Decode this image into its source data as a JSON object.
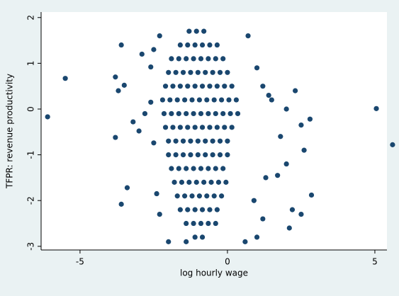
{
  "chart_data": {
    "type": "scatter",
    "x_label": "log hourly wage",
    "y_label": "TFPR: revenue productivity",
    "xlim": [
      -6.32,
      5.41
    ],
    "ylim": [
      -3.08,
      2.12
    ],
    "xticks": [
      -5,
      0,
      5
    ],
    "yticks": [
      -3,
      -2,
      -1,
      0,
      1,
      2
    ],
    "grid": false,
    "series": [
      {
        "color": "#1a476f",
        "x": [
          -1.3,
          -1.05,
          -0.8,
          -1.6,
          -1.35,
          -1.1,
          -0.85,
          -0.6,
          -0.35,
          -1.9,
          -1.65,
          -1.4,
          -1.15,
          -0.9,
          -0.65,
          -0.4,
          -0.15,
          -2.0,
          -1.75,
          -1.5,
          -1.25,
          -1.0,
          -0.75,
          -0.5,
          -0.25,
          0.0,
          -2.1,
          -1.85,
          -1.6,
          -1.35,
          -1.1,
          -0.85,
          -0.6,
          -0.35,
          -0.1,
          0.15,
          -2.2,
          -1.95,
          -1.7,
          -1.45,
          -1.2,
          -0.95,
          -0.7,
          -0.45,
          -0.2,
          0.05,
          0.3,
          -2.15,
          -1.9,
          -1.65,
          -1.4,
          -1.15,
          -0.9,
          -0.65,
          -0.4,
          -0.15,
          0.1,
          0.35,
          -2.1,
          -1.85,
          -1.6,
          -1.35,
          -1.1,
          -0.85,
          -0.6,
          -0.35,
          -0.1,
          0.15,
          -2.0,
          -1.75,
          -1.5,
          -1.25,
          -1.0,
          -0.75,
          -0.5,
          -0.25,
          0.0,
          -2.0,
          -1.75,
          -1.5,
          -1.25,
          -1.0,
          -0.75,
          -0.5,
          -0.25,
          0.0,
          -1.9,
          -1.65,
          -1.4,
          -1.15,
          -0.9,
          -0.65,
          -0.4,
          -0.15,
          -1.8,
          -1.55,
          -1.3,
          -1.05,
          -0.8,
          -0.55,
          -0.3,
          -0.05,
          -1.7,
          -1.45,
          -1.2,
          -0.95,
          -0.7,
          -0.45,
          -0.2,
          -1.6,
          -1.35,
          -1.1,
          -0.85,
          -0.6,
          -0.35,
          -1.4,
          -1.15,
          -0.9,
          -0.65,
          -0.4,
          -1.1,
          -0.85,
          -6.1,
          -5.5,
          -3.6,
          -3.6,
          -3.4,
          -3.8,
          -3.7,
          -3.5,
          -3.8,
          -3.0,
          -2.9,
          -3.2,
          -2.6,
          -2.5,
          -2.4,
          -2.3,
          -2.0,
          -2.6,
          -2.8,
          1.0,
          1.2,
          1.5,
          1.8,
          2.0,
          1.3,
          1.7,
          2.1,
          2.2,
          2.5,
          2.85,
          2.8,
          2.5,
          2.3,
          2.6,
          5.05,
          5.6,
          1.0,
          1.2,
          0.7,
          0.6,
          0.9,
          1.4,
          2.0,
          -2.3,
          -2.5,
          -1.4
        ],
        "values": [
          1.7,
          1.7,
          1.7,
          1.4,
          1.4,
          1.4,
          1.4,
          1.4,
          1.4,
          1.1,
          1.1,
          1.1,
          1.1,
          1.1,
          1.1,
          1.1,
          1.1,
          0.8,
          0.8,
          0.8,
          0.8,
          0.8,
          0.8,
          0.8,
          0.8,
          0.8,
          0.5,
          0.5,
          0.5,
          0.5,
          0.5,
          0.5,
          0.5,
          0.5,
          0.5,
          0.5,
          0.2,
          0.2,
          0.2,
          0.2,
          0.2,
          0.2,
          0.2,
          0.2,
          0.2,
          0.2,
          0.2,
          -0.1,
          -0.1,
          -0.1,
          -0.1,
          -0.1,
          -0.1,
          -0.1,
          -0.1,
          -0.1,
          -0.1,
          -0.1,
          -0.4,
          -0.4,
          -0.4,
          -0.4,
          -0.4,
          -0.4,
          -0.4,
          -0.4,
          -0.4,
          -0.4,
          -0.7,
          -0.7,
          -0.7,
          -0.7,
          -0.7,
          -0.7,
          -0.7,
          -0.7,
          -0.7,
          -1.0,
          -1.0,
          -1.0,
          -1.0,
          -1.0,
          -1.0,
          -1.0,
          -1.0,
          -1.0,
          -1.3,
          -1.3,
          -1.3,
          -1.3,
          -1.3,
          -1.3,
          -1.3,
          -1.3,
          -1.6,
          -1.6,
          -1.6,
          -1.6,
          -1.6,
          -1.6,
          -1.6,
          -1.6,
          -1.9,
          -1.9,
          -1.9,
          -1.9,
          -1.9,
          -1.9,
          -1.9,
          -2.2,
          -2.2,
          -2.2,
          -2.2,
          -2.2,
          -2.2,
          -2.5,
          -2.5,
          -2.5,
          -2.5,
          -2.5,
          -2.8,
          -2.8,
          -0.17,
          0.67,
          1.4,
          -2.08,
          -1.72,
          0.7,
          0.4,
          0.52,
          -0.62,
          -0.48,
          1.2,
          -0.28,
          0.92,
          -0.74,
          -1.85,
          -2.3,
          -2.9,
          0.15,
          -0.1,
          0.9,
          0.5,
          0.2,
          -0.6,
          -1.2,
          -1.5,
          -1.45,
          -2.6,
          -2.2,
          -2.3,
          -1.88,
          -0.22,
          -0.35,
          0.4,
          -0.9,
          0.01,
          -0.78,
          -2.8,
          -2.4,
          1.6,
          -2.9,
          -2.0,
          0.3,
          0.0,
          1.6,
          1.3,
          -2.9
        ]
      }
    ]
  }
}
